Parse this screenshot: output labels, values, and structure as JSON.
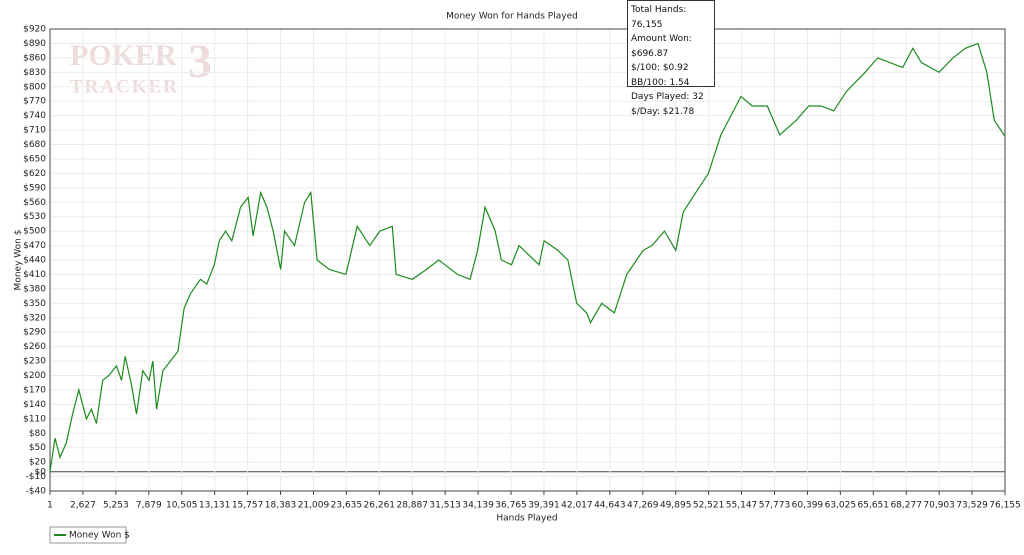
{
  "chart_data": {
    "type": "line",
    "title": "Money Won for Hands Played",
    "x_label": "Hands Played",
    "y_label": "Money Won $",
    "watermark": [
      "POKER",
      "TRACKER",
      "3"
    ],
    "tooltip": [
      "Total Hands: 76,155",
      "Amount Won: $696.87",
      "$/100: $0.92",
      "BB/100: 1.54",
      "Days Played: 32",
      "$/Day: $21.78"
    ],
    "xlim": [
      1,
      76155
    ],
    "xticks": [
      1,
      {
        "value": 2627,
        "label": "2,627"
      },
      {
        "value": 5253,
        "label": "5,253"
      },
      {
        "value": 7879,
        "label": "7,879"
      },
      {
        "value": 10505,
        "label": "10,505"
      },
      {
        "value": 13131,
        "label": "13,131"
      },
      {
        "value": 15757,
        "label": "15,757"
      },
      {
        "value": 18383,
        "label": "18,383"
      },
      {
        "value": 21009,
        "label": "21,009"
      },
      {
        "value": 23635,
        "label": "23,635"
      },
      {
        "value": 26261,
        "label": "26,261"
      },
      {
        "value": 28887,
        "label": "28,887"
      },
      {
        "value": 31513,
        "label": "31,513"
      },
      {
        "value": 34139,
        "label": "34,139"
      },
      {
        "value": 36765,
        "label": "36,765"
      },
      {
        "value": 39391,
        "label": "39,391"
      },
      {
        "value": 42017,
        "label": "42,017"
      },
      {
        "value": 44643,
        "label": "44,643"
      },
      {
        "value": 47269,
        "label": "47,269"
      },
      {
        "value": 49895,
        "label": "49,895"
      },
      {
        "value": 52521,
        "label": "52,521"
      },
      {
        "value": 55147,
        "label": "55,147"
      },
      {
        "value": 57773,
        "label": "57,773"
      },
      {
        "value": 60399,
        "label": "60,399"
      },
      {
        "value": 63025,
        "label": "63,025"
      },
      {
        "value": 65651,
        "label": "65,651"
      },
      {
        "value": 68277,
        "label": "68,277"
      },
      {
        "value": 70903,
        "label": "70,903"
      },
      {
        "value": 73529,
        "label": "73,529"
      },
      {
        "value": 76155,
        "label": "76,155"
      }
    ],
    "ylim": [
      -40,
      920
    ],
    "yticks": [
      {
        "value": -40,
        "label": "-$40"
      },
      {
        "value": -10,
        "label": "-$10"
      },
      {
        "value": 0,
        "label": "$0"
      },
      {
        "value": 20,
        "label": "$20"
      },
      {
        "value": 50,
        "label": "$50"
      },
      {
        "value": 80,
        "label": "$80"
      },
      {
        "value": 110,
        "label": "$110"
      },
      {
        "value": 140,
        "label": "$140"
      },
      {
        "value": 170,
        "label": "$170"
      },
      {
        "value": 200,
        "label": "$200"
      },
      {
        "value": 230,
        "label": "$230"
      },
      {
        "value": 260,
        "label": "$260"
      },
      {
        "value": 290,
        "label": "$290"
      },
      {
        "value": 320,
        "label": "$320"
      },
      {
        "value": 350,
        "label": "$350"
      },
      {
        "value": 380,
        "label": "$380"
      },
      {
        "value": 410,
        "label": "$410"
      },
      {
        "value": 440,
        "label": "$440"
      },
      {
        "value": 470,
        "label": "$470"
      },
      {
        "value": 500,
        "label": "$500"
      },
      {
        "value": 530,
        "label": "$530"
      },
      {
        "value": 560,
        "label": "$560"
      },
      {
        "value": 590,
        "label": "$590"
      },
      {
        "value": 620,
        "label": "$620"
      },
      {
        "value": 650,
        "label": "$650"
      },
      {
        "value": 680,
        "label": "$680"
      },
      {
        "value": 710,
        "label": "$710"
      },
      {
        "value": 740,
        "label": "$740"
      },
      {
        "value": 770,
        "label": "$770"
      },
      {
        "value": 800,
        "label": "$800"
      },
      {
        "value": 830,
        "label": "$830"
      },
      {
        "value": 860,
        "label": "$860"
      },
      {
        "value": 890,
        "label": "$890"
      },
      {
        "value": 920,
        "label": "$920"
      }
    ],
    "grid": true,
    "x": [
      1,
      400,
      800,
      1300,
      1800,
      2300,
      2900,
      3300,
      3700,
      4200,
      4700,
      5300,
      5700,
      6000,
      6500,
      6900,
      7400,
      7900,
      8200,
      8500,
      9000,
      9600,
      10200,
      10700,
      11200,
      12000,
      12500,
      13100,
      13500,
      14000,
      14500,
      15200,
      15800,
      16200,
      16800,
      17300,
      17800,
      18400,
      18700,
      19500,
      20300,
      20800,
      21300,
      22300,
      23600,
      24500,
      25500,
      26300,
      27300,
      27600,
      28900,
      30000,
      31000,
      31500,
      32500,
      33500,
      34100,
      34700,
      35500,
      36000,
      36800,
      37400,
      38200,
      39000,
      39400,
      40500,
      41300,
      42000,
      42800,
      43100,
      44000,
      45000,
      46000,
      47300,
      48000,
      49000,
      49900,
      50500,
      51500,
      52500,
      53500,
      55100,
      56000,
      57200,
      58200,
      59500,
      60500,
      61500,
      62500,
      63500,
      65000,
      66000,
      67000,
      68000,
      68800,
      69500,
      70900,
      72000,
      73000,
      74000,
      74700,
      75300,
      76155
    ],
    "series": [
      {
        "name": "Money Won $",
        "color": "#1e8a1e",
        "values": [
          0,
          70,
          30,
          60,
          120,
          170,
          110,
          130,
          100,
          190,
          200,
          220,
          190,
          240,
          180,
          120,
          210,
          190,
          230,
          130,
          210,
          230,
          250,
          340,
          370,
          400,
          390,
          430,
          480,
          500,
          480,
          550,
          570,
          490,
          580,
          550,
          500,
          420,
          500,
          470,
          560,
          580,
          440,
          420,
          410,
          510,
          470,
          500,
          510,
          410,
          400,
          420,
          440,
          430,
          410,
          400,
          460,
          550,
          500,
          440,
          430,
          470,
          450,
          430,
          480,
          460,
          440,
          350,
          330,
          310,
          350,
          330,
          410,
          460,
          470,
          500,
          460,
          540,
          580,
          620,
          700,
          780,
          760,
          760,
          700,
          730,
          760,
          760,
          750,
          790,
          830,
          860,
          850,
          840,
          880,
          850,
          830,
          860,
          880,
          890,
          830,
          730,
          697
        ]
      }
    ]
  }
}
